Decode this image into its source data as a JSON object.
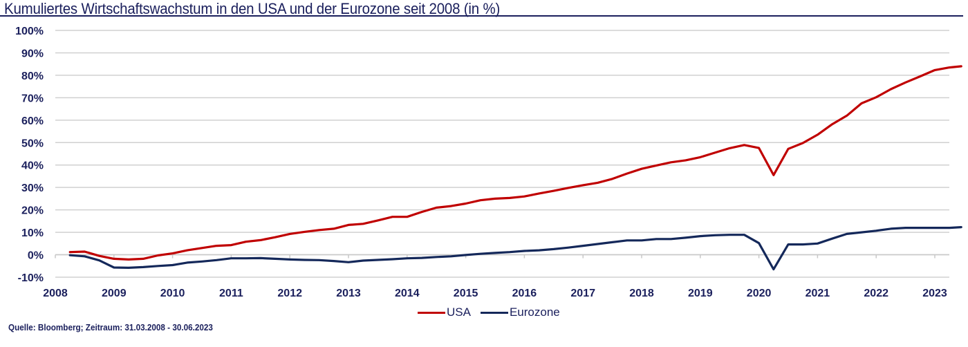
{
  "chart_data": {
    "type": "line",
    "title": "Kumuliertes Wirtschaftswachstum in den USA und der Eurozone seit 2008 (in %)",
    "xlabel": "",
    "ylabel": "",
    "ylim": [
      -10,
      100
    ],
    "xlim": [
      2008,
      2023.45
    ],
    "grid": true,
    "legend_position": "bottom-center",
    "y_ticks": [
      "-10%",
      "0%",
      "10%",
      "20%",
      "30%",
      "40%",
      "50%",
      "60%",
      "70%",
      "80%",
      "90%",
      "100%"
    ],
    "y_tick_values": [
      -10,
      0,
      10,
      20,
      30,
      40,
      50,
      60,
      70,
      80,
      90,
      100
    ],
    "x_ticks": [
      "2008",
      "2009",
      "2010",
      "2011",
      "2012",
      "2013",
      "2014",
      "2015",
      "2016",
      "2017",
      "2018",
      "2019",
      "2020",
      "2021",
      "2022",
      "2023"
    ],
    "x_tick_values": [
      2008,
      2009,
      2010,
      2011,
      2012,
      2013,
      2014,
      2015,
      2016,
      2017,
      2018,
      2019,
      2020,
      2021,
      2022,
      2023
    ],
    "x": [
      2008.25,
      2008.5,
      2008.75,
      2009.0,
      2009.25,
      2009.5,
      2009.75,
      2010.0,
      2010.25,
      2010.5,
      2010.75,
      2011.0,
      2011.25,
      2011.5,
      2011.75,
      2012.0,
      2012.25,
      2012.5,
      2012.75,
      2013.0,
      2013.25,
      2013.5,
      2013.75,
      2014.0,
      2014.25,
      2014.5,
      2014.75,
      2015.0,
      2015.25,
      2015.5,
      2015.75,
      2016.0,
      2016.25,
      2016.5,
      2016.75,
      2017.0,
      2017.25,
      2017.5,
      2017.75,
      2018.0,
      2018.25,
      2018.5,
      2018.75,
      2019.0,
      2019.25,
      2019.5,
      2019.75,
      2020.0,
      2020.25,
      2020.5,
      2020.75,
      2021.0,
      2021.25,
      2021.5,
      2021.75,
      2022.0,
      2022.25,
      2022.5,
      2022.75,
      2023.0,
      2023.25,
      2023.45
    ],
    "series": [
      {
        "name": "USA",
        "color": "#c00000",
        "values": [
          1.2,
          1.4,
          -0.5,
          -1.8,
          -2.1,
          -1.8,
          -0.3,
          0.6,
          2.0,
          3.0,
          4.0,
          4.3,
          5.8,
          6.5,
          7.8,
          9.3,
          10.2,
          11.0,
          11.6,
          13.3,
          13.8,
          15.3,
          16.9,
          16.9,
          19.1,
          21.0,
          21.7,
          22.8,
          24.3,
          25.0,
          25.3,
          26.0,
          27.3,
          28.5,
          29.8,
          31.0,
          32.1,
          33.8,
          36.2,
          38.3,
          39.8,
          41.2,
          42.1,
          43.5,
          45.5,
          47.5,
          48.9,
          47.6,
          35.5,
          47.2,
          49.8,
          53.5,
          58.2,
          62.0,
          67.5,
          70.2,
          73.8,
          76.8,
          79.5,
          82.3,
          83.5,
          84.0
        ]
      },
      {
        "name": "Eurozone",
        "color": "#14285a",
        "values": [
          -0.2,
          -0.7,
          -2.5,
          -5.7,
          -5.8,
          -5.5,
          -5.0,
          -4.6,
          -3.5,
          -3.0,
          -2.4,
          -1.6,
          -1.6,
          -1.5,
          -1.8,
          -2.1,
          -2.3,
          -2.4,
          -2.8,
          -3.3,
          -2.6,
          -2.3,
          -2.0,
          -1.6,
          -1.4,
          -1.0,
          -0.7,
          -0.1,
          0.4,
          0.8,
          1.2,
          1.7,
          2.0,
          2.5,
          3.2,
          4.0,
          4.8,
          5.6,
          6.4,
          6.4,
          7.0,
          7.0,
          7.6,
          8.3,
          8.7,
          8.9,
          8.9,
          5.2,
          -6.5,
          4.6,
          4.6,
          5.0,
          7.2,
          9.3,
          10.0,
          10.7,
          11.6,
          12.0,
          12.0,
          12.0,
          12.0,
          12.3
        ]
      }
    ]
  },
  "legend": {
    "items": [
      {
        "label": "USA",
        "color": "#c00000"
      },
      {
        "label": "Eurozone",
        "color": "#14285a"
      }
    ]
  },
  "source": "Quelle: Bloomberg; Zeitraum: 31.03.2008 - 30.06.2023"
}
